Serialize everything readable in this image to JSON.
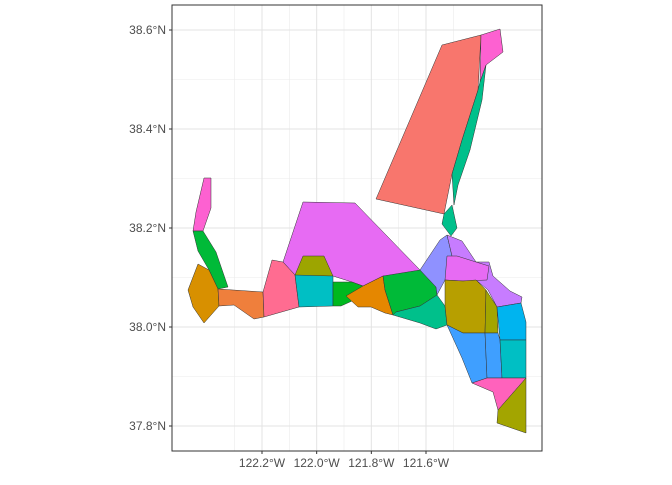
{
  "map": {
    "y_ticks": [
      {
        "value": 38.6,
        "label": "38.6°N"
      },
      {
        "value": 38.4,
        "label": "38.4°N"
      },
      {
        "value": 38.2,
        "label": "38.2°N"
      },
      {
        "value": 38.0,
        "label": "38.0°N"
      },
      {
        "value": 37.8,
        "label": "37.8°N"
      }
    ],
    "x_ticks": [
      {
        "value": -122.2,
        "label": "122.2°W"
      },
      {
        "value": -122.0,
        "label": "122.0°W"
      },
      {
        "value": -121.8,
        "label": "121.8°W"
      },
      {
        "value": -121.6,
        "label": "121.6°W"
      }
    ],
    "colors": {
      "salmon": "#F8766D",
      "orange": "#E58700",
      "dark_orange": "#D89000",
      "coral_orange": "#EF7F3C",
      "olive": "#A3A500",
      "gold_olive": "#B79F00",
      "yellow_olive": "#9DA500",
      "green": "#00BA38",
      "green2": "#00B81F",
      "teal": "#00C08B",
      "cyan": "#00BFC4",
      "sky": "#00B4EF",
      "blue": "#3F9FFF",
      "periwinkle": "#8F91FF",
      "lavender": "#C77CFF",
      "magenta": "#E76BF3",
      "pink": "#FF62BC",
      "hot_pink": "#FD61D1",
      "rose": "#FF6C91"
    }
  }
}
